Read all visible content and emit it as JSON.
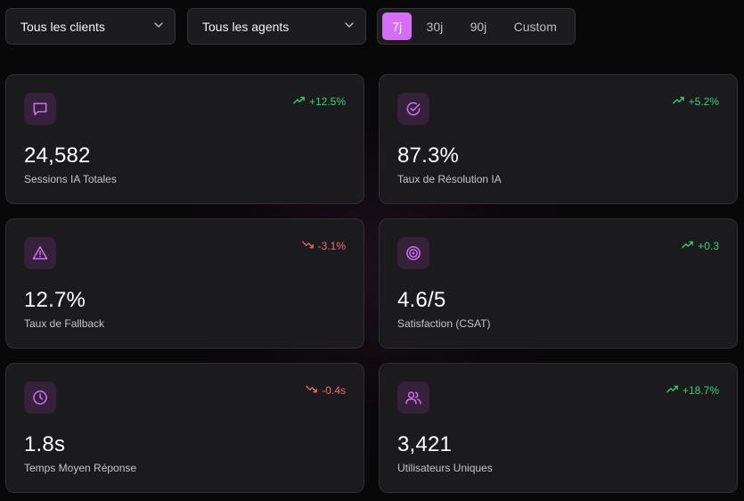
{
  "filters": {
    "clients_label": "Tous les clients",
    "agents_label": "Tous les agents",
    "range_options": [
      "7j",
      "30j",
      "90j",
      "Custom"
    ],
    "range_selected": "7j"
  },
  "colors": {
    "accent": "#d46ef5",
    "positive": "#35d07f",
    "negative": "#f06b6b",
    "card_bg": "#1b1b1e",
    "icon_bg": "#35223a"
  },
  "cards": [
    {
      "icon": "chat-bubble-icon",
      "value": "24,582",
      "label": "Sessions IA Totales",
      "trend": "+12.5%",
      "direction": "up"
    },
    {
      "icon": "check-circle-icon",
      "value": "87.3%",
      "label": "Taux de Résolution IA",
      "trend": "+5.2%",
      "direction": "up"
    },
    {
      "icon": "warning-triangle-icon",
      "value": "12.7%",
      "label": "Taux de Fallback",
      "trend": "-3.1%",
      "direction": "down"
    },
    {
      "icon": "target-icon",
      "value": "4.6/5",
      "label": "Satisfaction (CSAT)",
      "trend": "+0.3",
      "direction": "up"
    },
    {
      "icon": "clock-icon",
      "value": "1.8s",
      "label": "Temps Moyen Réponse",
      "trend": "-0.4s",
      "direction": "down"
    },
    {
      "icon": "users-icon",
      "value": "3,421",
      "label": "Utilisateurs Uniques",
      "trend": "+18.7%",
      "direction": "up"
    }
  ]
}
